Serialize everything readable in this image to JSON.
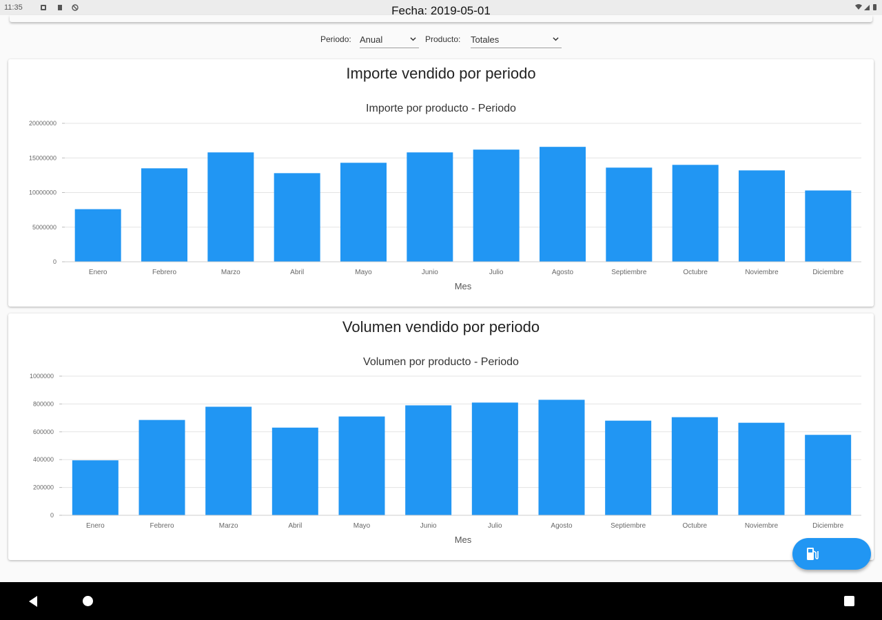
{
  "status_bar": {
    "time": "11:35"
  },
  "header": {
    "title": "Fecha: 2019-05-01"
  },
  "filters": {
    "periodo_label": "Periodo:",
    "periodo_value": "Anual",
    "producto_label": "Producto:",
    "producto_value": "Totales"
  },
  "colors": {
    "bar": "#2196f3",
    "fab": "#2196f3"
  },
  "fab": {
    "icon": "gas-station-icon"
  },
  "cards": [
    {
      "title": "Importe vendido por periodo"
    },
    {
      "title": "Volumen vendido por periodo"
    }
  ],
  "chart_data": [
    {
      "type": "bar",
      "title": "Importe por producto - Periodo",
      "xlabel": "Mes",
      "ylabel": "",
      "ylim": [
        0,
        20000000
      ],
      "yticks": [
        0,
        5000000,
        10000000,
        15000000,
        20000000
      ],
      "categories": [
        "Enero",
        "Febrero",
        "Marzo",
        "Abril",
        "Mayo",
        "Junio",
        "Julio",
        "Agosto",
        "Septiembre",
        "Octubre",
        "Noviembre",
        "Diciembre"
      ],
      "values": [
        7600000,
        13500000,
        15800000,
        12800000,
        14300000,
        15800000,
        16200000,
        16600000,
        13600000,
        14000000,
        13200000,
        10300000
      ]
    },
    {
      "type": "bar",
      "title": "Volumen por producto - Periodo",
      "xlabel": "Mes",
      "ylabel": "",
      "ylim": [
        0,
        1000000
      ],
      "yticks": [
        0,
        200000,
        400000,
        600000,
        800000,
        1000000
      ],
      "categories": [
        "Enero",
        "Febrero",
        "Marzo",
        "Abril",
        "Mayo",
        "Junio",
        "Julio",
        "Agosto",
        "Septiembre",
        "Octubre",
        "Noviembre",
        "Diciembre"
      ],
      "values": [
        395000,
        685000,
        780000,
        630000,
        710000,
        790000,
        810000,
        830000,
        680000,
        705000,
        665000,
        578000
      ]
    }
  ]
}
